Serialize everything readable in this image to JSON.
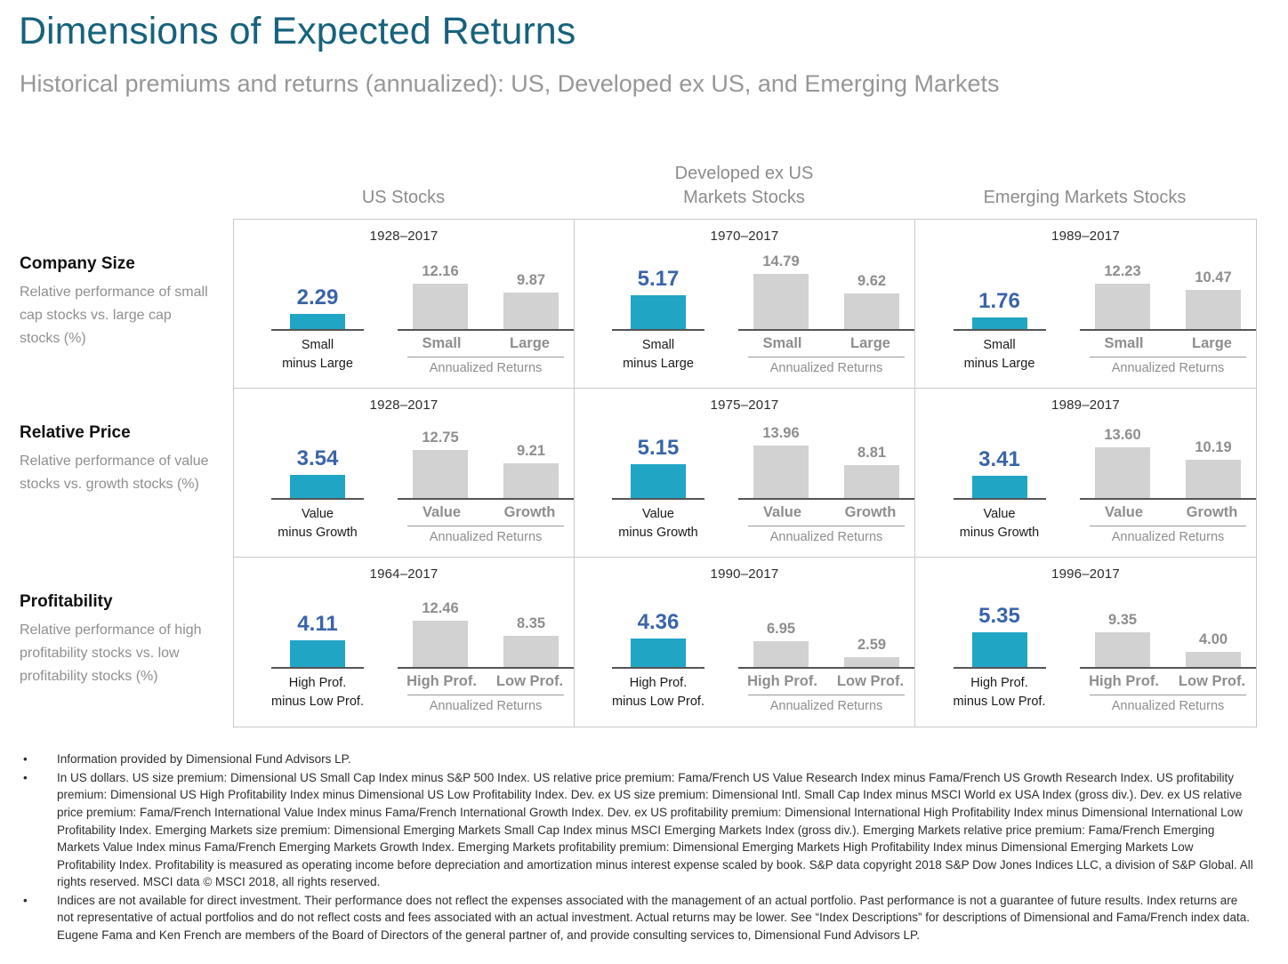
{
  "page": {
    "title": "Dimensions of Expected Returns",
    "subtitle": "Historical premiums and returns (annualized): US, Developed ex US, and Emerging Markets"
  },
  "labels": {
    "annualized": "Annualized Returns"
  },
  "colors": {
    "title_teal": "#17627C",
    "premium_bar_teal": "#21A5C5",
    "premium_value_blue": "#3A64A8",
    "return_bar_gray": "#D2D2D2",
    "gray_text": "#8E8E8E"
  },
  "chart_data": {
    "type": "bar",
    "unit": "%",
    "layout": "3x3 grid of mini bar charts; rows are factor premiums, columns are markets; blue bar = premium, gray bars = annualized returns of each side",
    "columns": [
      [
        "US Stocks"
      ],
      [
        "Developed ex US",
        "Markets Stocks"
      ],
      [
        "Emerging Markets Stocks"
      ]
    ],
    "rows": [
      {
        "header": "Company Size",
        "description": "Relative performance of small cap stocks vs. large cap stocks (%)",
        "premium_label": [
          "Small",
          "minus Large"
        ],
        "return_labels": [
          "Small",
          "Large"
        ],
        "cells": [
          {
            "period": "1928–2017",
            "premium": "2.29",
            "returns": [
              "12.16",
              "9.87"
            ]
          },
          {
            "period": "1970–2017",
            "premium": "5.17",
            "returns": [
              "14.79",
              "9.62"
            ]
          },
          {
            "period": "1989–2017",
            "premium": "1.76",
            "returns": [
              "12.23",
              "10.47"
            ]
          }
        ]
      },
      {
        "header": "Relative Price",
        "description": "Relative performance of value stocks vs. growth stocks (%)",
        "premium_label": [
          "Value",
          "minus Growth"
        ],
        "return_labels": [
          "Value",
          "Growth"
        ],
        "cells": [
          {
            "period": "1928–2017",
            "premium": "3.54",
            "returns": [
              "12.75",
              "9.21"
            ]
          },
          {
            "period": "1975–2017",
            "premium": "5.15",
            "returns": [
              "13.96",
              "8.81"
            ]
          },
          {
            "period": "1989–2017",
            "premium": "3.41",
            "returns": [
              "13.60",
              "10.19"
            ]
          }
        ]
      },
      {
        "header": "Profitability",
        "description": "Relative performance of high profitability stocks vs. low profitability stocks (%)",
        "premium_label": [
          "High Prof.",
          "minus Low Prof."
        ],
        "return_labels": [
          "High Prof.",
          "Low Prof."
        ],
        "cells": [
          {
            "period": "1964–2017",
            "premium": "4.11",
            "returns": [
              "12.46",
              "8.35"
            ]
          },
          {
            "period": "1990–2017",
            "premium": "4.36",
            "returns": [
              "6.95",
              "2.59"
            ]
          },
          {
            "period": "1996–2017",
            "premium": "5.35",
            "returns": [
              "9.35",
              "4.00"
            ]
          }
        ]
      }
    ]
  },
  "footnotes": [
    "Information provided by Dimensional Fund Advisors LP.",
    "In US dollars. US size premium: Dimensional US Small Cap Index minus S&P 500 Index. US relative price premium: Fama/French US Value Research Index minus Fama/French US Growth Research Index. US profitability premium: Dimensional US High Profitability Index minus Dimensional US Low Profitability Index. Dev. ex US size premium: Dimensional Intl. Small Cap Index minus MSCI World ex USA Index (gross div.). Dev. ex US relative price premium: Fama/French International Value Index minus Fama/French International Growth Index. Dev. ex US profitability premium: Dimensional International High Profitability Index minus Dimensional International Low Profitability Index. Emerging Markets size premium: Dimensional Emerging Markets Small Cap Index minus MSCI Emerging Markets Index (gross div.). Emerging Markets relative price premium: Fama/French Emerging Markets Value Index minus Fama/French Emerging Markets Growth Index. Emerging Markets profitability premium: Dimensional Emerging Markets High Profitability Index minus Dimensional Emerging Markets Low Profitability Index. Profitability is measured as operating income before depreciation and amortization minus interest expense scaled by book. S&P data copyright 2018 S&P Dow Jones Indices LLC, a division of S&P Global. All rights reserved. MSCI data © MSCI 2018, all rights reserved.",
    "Indices are not available for direct investment. Their performance does not reflect the expenses associated with the management of an actual portfolio. Past performance is not a guarantee of future results. Index returns are not representative of actual portfolios and do not reflect costs and fees associated with an actual investment. Actual returns may be lower. See “Index Descriptions” for descriptions of Dimensional and Fama/French index data. Eugene Fama and Ken French are members of the Board of Directors of the general partner of, and provide consulting services to, Dimensional Fund Advisors LP."
  ]
}
